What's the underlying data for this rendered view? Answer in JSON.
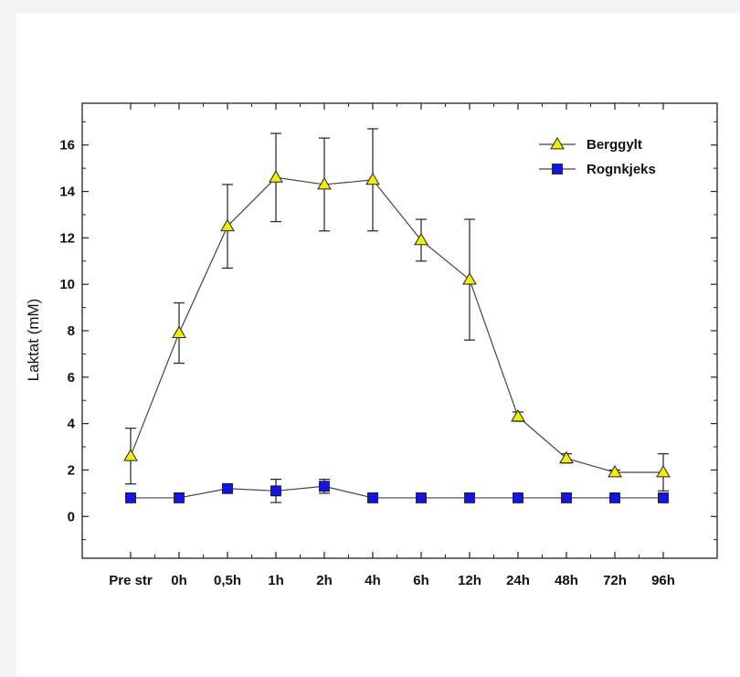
{
  "chart_data": {
    "type": "line",
    "title": "",
    "xlabel": "",
    "ylabel": "Laktat (mM)",
    "categories": [
      "Pre str",
      "0h",
      "0,5h",
      "1h",
      "2h",
      "4h",
      "6h",
      "12h",
      "24h",
      "48h",
      "72h",
      "96h"
    ],
    "ylim": [
      -1.8,
      17.8
    ],
    "yticks": [
      0,
      2,
      4,
      6,
      8,
      10,
      12,
      14,
      16
    ],
    "grid": false,
    "legend_position": "top-right",
    "series": [
      {
        "name": "Berggylt",
        "marker": "triangle",
        "color": "#f2ee00",
        "values": [
          2.6,
          7.9,
          12.5,
          14.6,
          14.3,
          14.5,
          11.9,
          10.2,
          4.3,
          2.5,
          1.9,
          1.9
        ],
        "error": [
          1.2,
          1.3,
          1.8,
          1.9,
          2.0,
          2.2,
          0.9,
          2.6,
          0.2,
          0.2,
          0.1,
          0.8
        ]
      },
      {
        "name": "Rognkjeks",
        "marker": "square",
        "color": "#1414e6",
        "values": [
          0.8,
          0.8,
          1.2,
          1.1,
          1.3,
          0.8,
          0.8,
          0.8,
          0.8,
          0.8,
          0.8,
          0.8
        ],
        "error": [
          0,
          0,
          0.1,
          0.5,
          0.3,
          0,
          0,
          0,
          0,
          0,
          0,
          0.1
        ]
      }
    ]
  }
}
